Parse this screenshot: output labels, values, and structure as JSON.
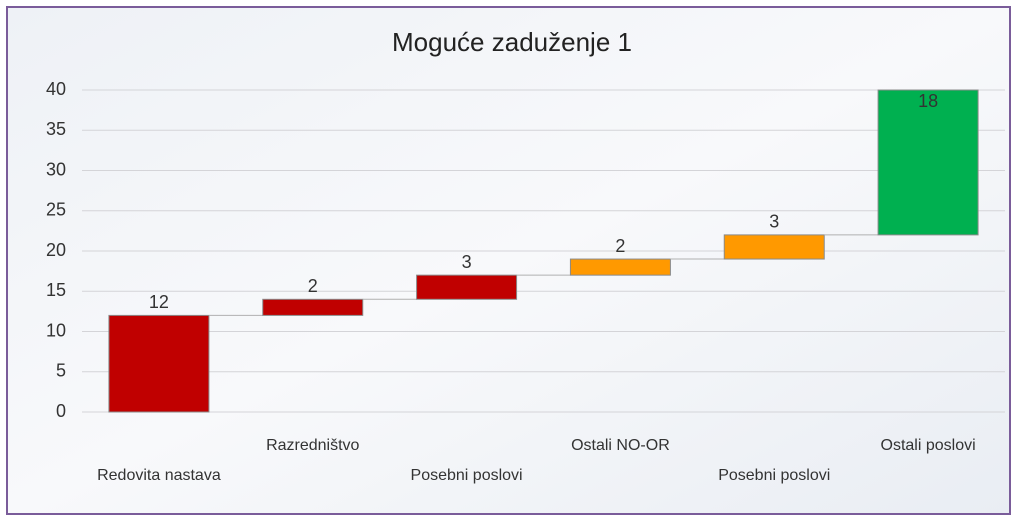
{
  "chart_data": {
    "type": "waterfall",
    "title": "Moguće zaduženje 1",
    "categories": [
      "Redovita nastava",
      "Razredništvo",
      "Posebni poslovi",
      "Ostali NO-OR",
      "Posebni poslovi",
      "Ostali poslovi"
    ],
    "values": [
      12,
      2,
      3,
      2,
      3,
      18
    ],
    "colors": [
      "#c00000",
      "#c00000",
      "#c00000",
      "#ff9900",
      "#ff9900",
      "#00b050"
    ],
    "ylim": [
      0,
      40
    ],
    "yticks": [
      0,
      5,
      10,
      15,
      20,
      25,
      30,
      35,
      40
    ],
    "grid": true
  }
}
